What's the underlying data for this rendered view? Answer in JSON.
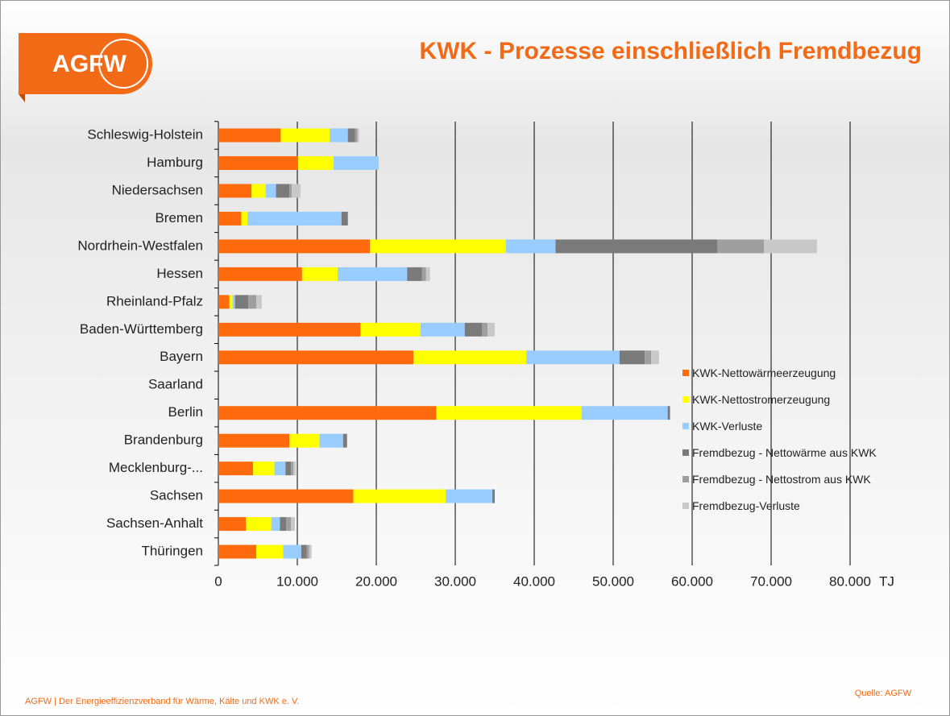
{
  "logo": "AGFW",
  "chart_data": {
    "type": "stacked-barh",
    "title": "KWK - Prozesse einschließlich Fremdbezug",
    "x_label": "TJ",
    "categories": [
      "Schleswig-Holstein",
      "Hamburg",
      "Niedersachsen",
      "Bremen",
      "Nordrhein-Westfalen",
      "Hessen",
      "Rheinland-Pfalz",
      "Baden-Württemberg",
      "Bayern",
      "Saarland",
      "Berlin",
      "Brandenburg",
      "Mecklenburg-...",
      "Sachsen",
      "Sachsen-Anhalt",
      "Thüringen"
    ],
    "series": [
      {
        "name": "KWK-Nettowärmeerzeugung",
        "color": "#ff6a0d",
        "values": [
          7900,
          10100,
          4200,
          2900,
          19200,
          10600,
          1400,
          18000,
          24700,
          0,
          27600,
          9000,
          4400,
          17100,
          3500,
          4800
        ]
      },
      {
        "name": "KWK-Nettostromerzeugung",
        "color": "#ffff00",
        "values": [
          6200,
          4500,
          1800,
          800,
          17200,
          4500,
          400,
          7600,
          14300,
          0,
          18400,
          3800,
          2700,
          11700,
          3200,
          3400
        ]
      },
      {
        "name": "KWK-Verluste",
        "color": "#99ccff",
        "values": [
          2300,
          5700,
          1300,
          11900,
          6300,
          8800,
          300,
          5600,
          11800,
          0,
          10900,
          3000,
          1400,
          5900,
          1100,
          2300
        ]
      },
      {
        "name": "Fremdbezug - Nettowärme aus KWK",
        "color": "#7a7a7a",
        "values": [
          900,
          0,
          1700,
          800,
          20500,
          1900,
          1700,
          2200,
          3200,
          0,
          300,
          500,
          700,
          300,
          800,
          700
        ]
      },
      {
        "name": "Fremdbezug - Nettostrom aus KWK",
        "color": "#9e9e9e",
        "values": [
          300,
          0,
          300,
          0,
          5900,
          500,
          1000,
          700,
          800,
          0,
          0,
          0,
          300,
          0,
          600,
          300
        ]
      },
      {
        "name": "Fremdbezug-Verluste",
        "color": "#c8c8c8",
        "values": [
          200,
          0,
          1100,
          0,
          6700,
          500,
          700,
          900,
          1000,
          0,
          0,
          0,
          300,
          0,
          500,
          300
        ]
      }
    ],
    "xlim": [
      0,
      80000
    ],
    "xticks": [
      0,
      {
        "value": 10000,
        "label": "10.000"
      },
      {
        "value": 20000,
        "label": "20.000"
      },
      {
        "value": 30000,
        "label": "30.000"
      },
      {
        "value": 40000,
        "label": "40.000"
      },
      {
        "value": 50000,
        "label": "50.000"
      },
      {
        "value": 60000,
        "label": "60.000"
      },
      {
        "value": 70000,
        "label": "70.000"
      },
      {
        "value": 80000,
        "label": "80.000"
      }
    ],
    "grid": true
  },
  "footer": "AGFW | Der Energieeffizienzverband für Wärme, Kälte und KWK e. V.",
  "source": "Quelle: AGFW"
}
